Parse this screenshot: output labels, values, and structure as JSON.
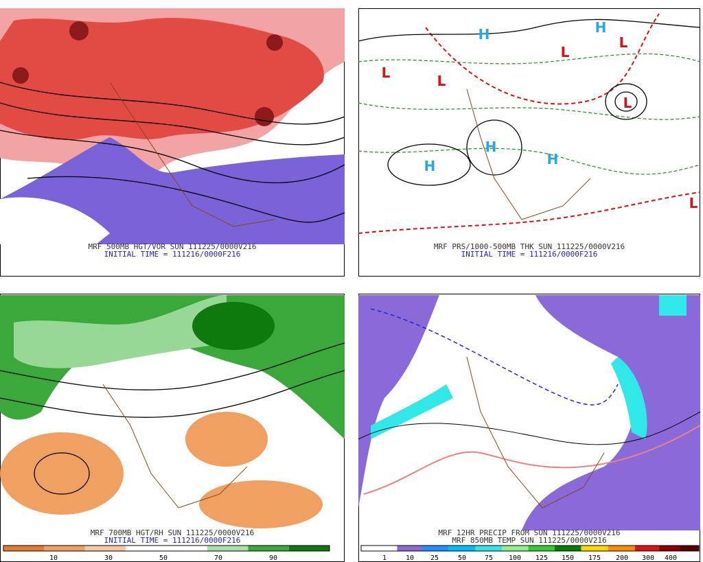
{
  "panels": [
    {
      "caption": "MRF 500MB HGT/VOR SUN 111225/0000V216",
      "initial_time": "INITIAL TIME = 111216/0000F216"
    },
    {
      "caption": "MRF PRS/1000-500MB THK SUN 111225/0000V216",
      "initial_time": "INITIAL TIME = 111216/0000F216",
      "pressure_centers": [
        "H",
        "H",
        "L",
        "L",
        "L",
        "L",
        "L",
        "H",
        "H",
        "H",
        "L"
      ]
    },
    {
      "caption": "MRF 700MB HGT/RH SUN 111225/0000V216",
      "initial_time": "INITIAL TIME = 111216/0000F216",
      "colorbar": [
        10,
        30,
        50,
        70,
        90
      ]
    },
    {
      "caption": "MRF 12HR PRECIP FROM SUN 111225/0000V216",
      "subcaption": "MRF 850MB TEMP SUN 111225/0000V216",
      "colorbar": [
        1,
        10,
        25,
        50,
        75,
        100,
        125,
        150,
        175,
        200,
        300,
        400
      ]
    }
  ]
}
